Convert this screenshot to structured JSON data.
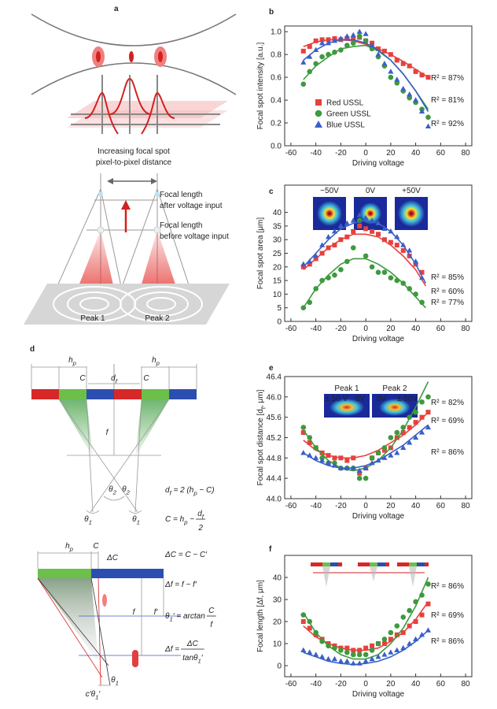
{
  "chart_data": [
    {
      "type": "scatter",
      "panel": "b",
      "ylabel": "Focal spot intensity [a.u.]",
      "xlabel": "Driving voltage",
      "xlim": [
        -65,
        85
      ],
      "xticks": [
        -60,
        -40,
        -20,
        0,
        20,
        40,
        60,
        80
      ],
      "ylim": [
        0,
        1.05
      ],
      "yticks": [
        {
          "value": 0,
          "label": "0.0"
        },
        0.2,
        0.4,
        0.6,
        0.8,
        {
          "value": 1,
          "label": "1.0"
        }
      ],
      "x": [
        -50,
        -45,
        -40,
        -35,
        -30,
        -25,
        -20,
        -15,
        -10,
        -5,
        0,
        5,
        10,
        15,
        20,
        25,
        30,
        35,
        40,
        45,
        50
      ],
      "fit_x": [
        -50,
        -40,
        -30,
        -20,
        -10,
        0,
        10,
        20,
        30,
        40,
        50
      ],
      "series": [
        {
          "name": "Red USSL",
          "color": "#e8403c",
          "marker": "square",
          "values": [
            0.83,
            0.87,
            0.92,
            0.93,
            0.93,
            0.94,
            0.93,
            0.94,
            0.94,
            0.95,
            0.92,
            0.9,
            0.85,
            0.83,
            0.8,
            0.75,
            0.72,
            0.7,
            0.65,
            0.62,
            0.6
          ],
          "fit": [
            0.87,
            0.91,
            0.93,
            0.93,
            0.92,
            0.89,
            0.85,
            0.8,
            0.74,
            0.67,
            0.6
          ]
        },
        {
          "name": "Green USSL",
          "color": "#3d9a3d",
          "marker": "circle",
          "values": [
            0.54,
            0.65,
            0.72,
            0.78,
            0.8,
            0.82,
            0.84,
            0.88,
            0.9,
            0.96,
            0.92,
            0.85,
            0.78,
            0.7,
            0.6,
            0.55,
            0.48,
            0.42,
            0.38,
            0.32,
            0.25
          ],
          "fit": [
            0.58,
            0.7,
            0.78,
            0.85,
            0.87,
            0.88,
            0.83,
            0.75,
            0.63,
            0.48,
            0.32
          ]
        },
        {
          "name": "Blue USSL",
          "color": "#3a5fc8",
          "marker": "triangle",
          "values": [
            0.73,
            0.78,
            0.84,
            0.9,
            0.9,
            0.92,
            0.94,
            0.96,
            0.97,
            1.0,
            0.98,
            0.88,
            0.8,
            0.72,
            0.65,
            0.58,
            0.5,
            0.45,
            0.4,
            0.3,
            0.17
          ],
          "fit": [
            0.75,
            0.84,
            0.9,
            0.93,
            0.93,
            0.9,
            0.84,
            0.75,
            0.63,
            0.48,
            0.3
          ]
        }
      ],
      "annotations": [
        "R² = 87%",
        "R² = 81%",
        "R² = 92%"
      ]
    },
    {
      "type": "scatter",
      "panel": "c",
      "ylabel": "Focal spot area [μm]",
      "xlabel": "Driving voltage",
      "xlim": [
        -65,
        85
      ],
      "xticks": [
        -60,
        -40,
        -20,
        0,
        20,
        40,
        60,
        80
      ],
      "ylim": [
        0,
        50
      ],
      "yticks": [
        0,
        5,
        10,
        15,
        20,
        25,
        30,
        35,
        40
      ],
      "x": [
        -50,
        -45,
        -40,
        -35,
        -30,
        -25,
        -20,
        -15,
        -10,
        -5,
        0,
        5,
        10,
        15,
        20,
        25,
        30,
        35,
        40,
        45
      ],
      "fit_x": [
        -50,
        -40,
        -30,
        -20,
        -10,
        0,
        10,
        20,
        30,
        40,
        48
      ],
      "series": [
        {
          "color": "#e8403c",
          "marker": "square",
          "values": [
            20,
            21,
            23,
            25,
            27,
            28,
            30,
            31,
            33,
            35,
            34,
            33,
            32,
            30,
            29,
            28,
            26,
            24,
            21,
            18
          ],
          "fit": [
            19,
            23,
            27,
            30,
            32,
            32,
            31,
            28,
            24,
            19,
            13
          ]
        },
        {
          "color": "#3d9a3d",
          "marker": "circle",
          "values": [
            5,
            7,
            12,
            15,
            16,
            17,
            19,
            22,
            27,
            37,
            24,
            20,
            18,
            18,
            16,
            15,
            14,
            12,
            10,
            7
          ],
          "fit": [
            5,
            12,
            17,
            21,
            23,
            23,
            21,
            18,
            14,
            9,
            5
          ]
        },
        {
          "color": "#3a5fc8",
          "marker": "triangle",
          "values": [
            21,
            22,
            24,
            28,
            31,
            33,
            35,
            36,
            37,
            39,
            38,
            37,
            36,
            34,
            33,
            31,
            28,
            26,
            22,
            16
          ],
          "fit": [
            20,
            25,
            30,
            34,
            36,
            37,
            36,
            33,
            28,
            21,
            14
          ]
        }
      ],
      "annotations": [
        "R² = 85%",
        "R² = 60%",
        "R² = 77%"
      ],
      "inset_labels": [
        "−50V",
        "0V",
        "+50V"
      ]
    },
    {
      "type": "scatter",
      "panel": "e",
      "ylabel": [
        "Focal spot distance [d",
        "f",
        ", μm]"
      ],
      "xlabel": "Driving voltage",
      "xlim": [
        -65,
        85
      ],
      "xticks": [
        -60,
        -40,
        -20,
        0,
        20,
        40,
        60,
        80
      ],
      "ylim": [
        44,
        46.4
      ],
      "yticks": [
        {
          "value": 44,
          "label": "44.0"
        },
        44.4,
        44.8,
        45.2,
        45.6,
        {
          "value": 46,
          "label": "46.0"
        },
        46.4
      ],
      "x": [
        -50,
        -45,
        -40,
        -35,
        -30,
        -25,
        -20,
        -15,
        -10,
        -5,
        0,
        5,
        10,
        15,
        20,
        25,
        30,
        35,
        40,
        45,
        50
      ],
      "fit_x": [
        -50,
        -40,
        -30,
        -20,
        -10,
        0,
        10,
        20,
        30,
        40,
        50
      ],
      "series": [
        {
          "color": "#e8403c",
          "marker": "square",
          "values": [
            45.3,
            45.1,
            45.0,
            44.9,
            44.85,
            44.8,
            44.8,
            44.75,
            44.8,
            44.5,
            44.6,
            44.8,
            44.9,
            44.95,
            45.0,
            45.2,
            45.3,
            45.4,
            45.5,
            45.6,
            45.7
          ],
          "fit": [
            45.15,
            44.95,
            44.85,
            44.8,
            44.8,
            44.85,
            44.95,
            45.1,
            45.25,
            45.45,
            45.7
          ]
        },
        {
          "color": "#3d9a3d",
          "marker": "circle",
          "values": [
            45.4,
            45.2,
            45.0,
            44.8,
            44.7,
            44.7,
            44.6,
            44.6,
            44.6,
            44.4,
            44.4,
            44.8,
            44.9,
            45.0,
            45.2,
            45.3,
            45.4,
            45.6,
            45.7,
            45.9,
            46.0
          ],
          "fit": [
            45.35,
            45.0,
            44.75,
            44.6,
            44.55,
            44.6,
            44.75,
            45.0,
            45.35,
            45.8,
            46.3
          ]
        },
        {
          "color": "#3a5fc8",
          "marker": "triangle",
          "values": [
            44.9,
            44.85,
            44.8,
            44.75,
            44.7,
            44.65,
            44.6,
            44.6,
            44.6,
            44.55,
            44.6,
            44.7,
            44.75,
            44.8,
            44.85,
            44.9,
            45.0,
            45.1,
            45.2,
            45.3,
            45.4
          ],
          "fit": [
            44.9,
            44.75,
            44.65,
            44.6,
            44.6,
            44.65,
            44.75,
            44.9,
            45.05,
            45.25,
            45.45
          ]
        }
      ],
      "annotations": [
        "R² = 82%",
        "R² = 69%",
        "R² = 86%"
      ],
      "inset_labels": [
        "Peak 1",
        "Peak 2",
        "± 50 V",
        "0V",
        "0V",
        "± 50V"
      ]
    },
    {
      "type": "scatter",
      "panel": "f",
      "ylabel": "Focal length [Δf, μm]",
      "xlabel": "Driving voltage",
      "xlim": [
        -65,
        85
      ],
      "xticks": [
        -60,
        -40,
        -20,
        0,
        20,
        40,
        60,
        80
      ],
      "ylim": [
        -5,
        50
      ],
      "yticks": [
        0,
        10,
        20,
        30,
        40
      ],
      "x": [
        -50,
        -45,
        -40,
        -35,
        -30,
        -25,
        -20,
        -15,
        -10,
        -5,
        0,
        5,
        10,
        15,
        20,
        25,
        30,
        35,
        40,
        45,
        50
      ],
      "fit_x": [
        -50,
        -40,
        -30,
        -20,
        -10,
        0,
        10,
        20,
        30,
        40,
        50
      ],
      "series": [
        {
          "color": "#e8403c",
          "marker": "square",
          "values": [
            20,
            17,
            14,
            12,
            10,
            9,
            8,
            8,
            7,
            7,
            8,
            9,
            10,
            10,
            12,
            14,
            15,
            18,
            20,
            23,
            28
          ],
          "fit": [
            18,
            13,
            10,
            8,
            7,
            7,
            8,
            11,
            15,
            21,
            29
          ]
        },
        {
          "color": "#3d9a3d",
          "marker": "circle",
          "values": [
            23,
            20,
            15,
            11,
            9,
            8,
            7,
            6,
            5,
            5,
            5,
            7,
            10,
            12,
            15,
            18,
            22,
            25,
            29,
            32,
            37
          ],
          "fit": [
            24,
            15,
            9,
            5,
            3,
            3,
            5,
            10,
            17,
            27,
            40
          ]
        },
        {
          "color": "#3a5fc8",
          "marker": "triangle",
          "values": [
            7,
            6,
            5,
            4,
            3,
            3,
            2,
            2,
            1,
            1,
            2,
            3,
            4,
            5,
            6,
            7,
            8,
            10,
            12,
            14,
            16
          ],
          "fit": [
            6,
            4,
            2,
            1,
            0.5,
            1,
            2,
            4,
            7,
            11,
            16
          ]
        }
      ],
      "annotations": [
        "R² = 86%",
        "R² = 69%",
        "R² = 86%"
      ]
    }
  ],
  "diagram_a": {
    "panel": "a",
    "heading": [
      "Increasing focal spot",
      "pixel-to-pixel distance"
    ],
    "after": [
      "Focal length",
      "after voltage input"
    ],
    "before": [
      "Focal length",
      "before voltage input"
    ],
    "peaks": [
      "Peak 1",
      "Peak 2"
    ]
  },
  "diagram_d": {
    "panel": "d",
    "top_labels": [
      [
        "h",
        "p"
      ],
      [
        "h",
        "p"
      ],
      [
        "C"
      ],
      [
        "C"
      ],
      [
        "d",
        "f"
      ],
      [
        "f"
      ],
      [
        "θ",
        "2"
      ],
      [
        "θ",
        "2"
      ],
      [
        "θ",
        "1"
      ],
      [
        "θ",
        "1"
      ]
    ],
    "equations": [
      [
        "d",
        "f",
        " = 2 (h",
        "p",
        " − C)"
      ],
      {
        "lhs": [
          "C = h",
          "p",
          " − "
        ],
        "num": [
          "d",
          "f"
        ],
        "den": [
          "2"
        ]
      },
      [
        "ΔC = C − C′"
      ],
      [
        "Δf = f − f′"
      ],
      {
        "lhs": [
          "θ",
          "1",
          "′ = arctan "
        ],
        "num": [
          "C"
        ],
        "den": [
          "f"
        ]
      },
      {
        "lhs": [
          "Δf = "
        ],
        "num": [
          "ΔC"
        ],
        "den": [
          "tanθ",
          "1",
          "′"
        ]
      }
    ],
    "bottom_labels": [
      [
        "h",
        "p"
      ],
      [
        "C"
      ],
      [
        "ΔC"
      ],
      [
        "f"
      ],
      [
        "f′"
      ],
      [
        "θ",
        "1"
      ],
      [
        "c′θ",
        "1",
        "′"
      ]
    ]
  }
}
